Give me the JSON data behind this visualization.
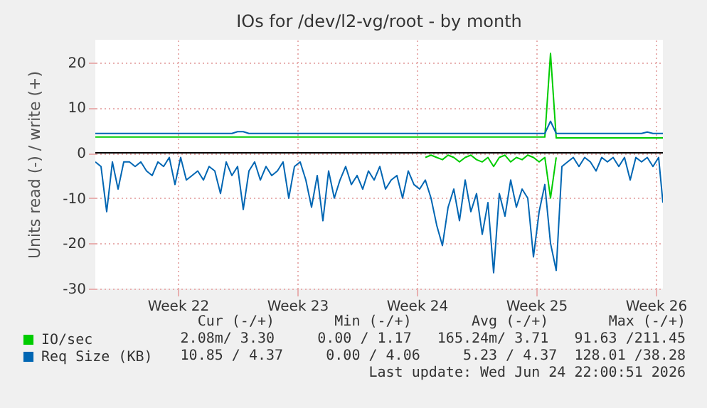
{
  "chart_data": {
    "type": "line",
    "title": "IOs for /dev/l2-vg/root - by month",
    "ylabel": "Units read (-) / write (+)",
    "x": [
      "2026-05-22T16:00",
      "2026-05-23T00:00",
      "2026-05-23T08:00",
      "2026-05-23T16:00",
      "2026-05-24T00:00",
      "2026-05-24T08:00",
      "2026-05-24T16:00",
      "2026-05-25T00:00",
      "2026-05-25T08:00",
      "2026-05-25T16:00",
      "2026-05-26T00:00",
      "2026-05-26T08:00",
      "2026-05-26T16:00",
      "2026-05-27T00:00",
      "2026-05-27T08:00",
      "2026-05-27T16:00",
      "2026-05-28T00:00",
      "2026-05-28T08:00",
      "2026-05-28T16:00",
      "2026-05-29T00:00",
      "2026-05-29T08:00",
      "2026-05-29T16:00",
      "2026-05-30T00:00",
      "2026-05-30T08:00",
      "2026-05-30T16:00",
      "2026-05-31T00:00",
      "2026-05-31T08:00",
      "2026-05-31T16:00",
      "2026-06-01T00:00",
      "2026-06-01T08:00",
      "2026-06-01T16:00",
      "2026-06-02T00:00",
      "2026-06-02T08:00",
      "2026-06-02T16:00",
      "2026-06-03T00:00",
      "2026-06-03T08:00",
      "2026-06-03T16:00",
      "2026-06-04T00:00",
      "2026-06-04T08:00",
      "2026-06-04T16:00",
      "2026-06-05T00:00",
      "2026-06-05T08:00",
      "2026-06-05T16:00",
      "2026-06-06T00:00",
      "2026-06-06T08:00",
      "2026-06-06T16:00",
      "2026-06-07T00:00",
      "2026-06-07T08:00",
      "2026-06-07T16:00",
      "2026-06-08T00:00",
      "2026-06-08T08:00",
      "2026-06-08T16:00",
      "2026-06-09T00:00",
      "2026-06-09T08:00",
      "2026-06-09T16:00",
      "2026-06-10T00:00",
      "2026-06-10T08:00",
      "2026-06-10T16:00",
      "2026-06-11T00:00",
      "2026-06-11T08:00",
      "2026-06-11T16:00",
      "2026-06-12T00:00",
      "2026-06-12T08:00",
      "2026-06-12T16:00",
      "2026-06-13T00:00",
      "2026-06-13T08:00",
      "2026-06-13T16:00",
      "2026-06-14T00:00",
      "2026-06-14T08:00",
      "2026-06-14T16:00",
      "2026-06-15T00:00",
      "2026-06-15T08:00",
      "2026-06-15T16:00",
      "2026-06-16T00:00",
      "2026-06-16T08:00",
      "2026-06-16T16:00",
      "2026-06-17T00:00",
      "2026-06-17T08:00",
      "2026-06-17T16:00",
      "2026-06-18T00:00",
      "2026-06-18T08:00",
      "2026-06-18T16:00",
      "2026-06-19T00:00",
      "2026-06-19T08:00",
      "2026-06-19T16:00",
      "2026-06-20T00:00",
      "2026-06-20T08:00",
      "2026-06-20T16:00",
      "2026-06-21T00:00",
      "2026-06-21T08:00",
      "2026-06-21T16:00",
      "2026-06-22T00:00",
      "2026-06-22T08:00",
      "2026-06-22T16:00",
      "2026-06-23T00:00",
      "2026-06-23T08:00",
      "2026-06-23T16:00",
      "2026-06-24T00:00",
      "2026-06-24T08:00",
      "2026-06-24T16:00",
      "2026-06-24T22:00"
    ],
    "xlim": [
      "2026-05-22T16:00",
      "2026-06-24T22:00"
    ],
    "xticks": [
      {
        "value": "2026-05-27T12:00",
        "label": "Week 22"
      },
      {
        "value": "2026-06-03T12:00",
        "label": "Week 23"
      },
      {
        "value": "2026-06-10T12:00",
        "label": "Week 24"
      },
      {
        "value": "2026-06-17T12:00",
        "label": "Week 25"
      },
      {
        "value": "2026-06-24T12:00",
        "label": "Week 26"
      }
    ],
    "ylim": [
      -30,
      25
    ],
    "yticks": [
      -30,
      -20,
      -10,
      0,
      10,
      20
    ],
    "grid": true,
    "legend": "bottom",
    "ref_lines": [
      {
        "axis": "y",
        "value": 0,
        "color": "#000000"
      }
    ],
    "series": [
      {
        "name": "IO/sec",
        "color": "#00cc00",
        "values": [
          3.5,
          3.5,
          3.5,
          3.5,
          3.5,
          3.5,
          3.5,
          3.5,
          3.5,
          3.5,
          3.5,
          3.5,
          3.5,
          3.5,
          3.5,
          3.5,
          3.5,
          3.5,
          3.5,
          3.5,
          3.5,
          3.5,
          3.5,
          3.5,
          3.5,
          3.5,
          3.5,
          3.5,
          3.5,
          3.5,
          3.5,
          3.5,
          3.5,
          3.5,
          3.5,
          3.5,
          3.5,
          3.5,
          3.5,
          3.5,
          3.5,
          3.5,
          3.5,
          3.5,
          3.5,
          3.5,
          3.5,
          3.5,
          3.5,
          3.5,
          3.5,
          3.5,
          3.5,
          3.5,
          3.5,
          3.5,
          3.5,
          3.5,
          3.5,
          3.5,
          3.5,
          3.5,
          3.5,
          3.5,
          3.5,
          3.5,
          3.5,
          3.5,
          3.5,
          3.5,
          3.5,
          3.5,
          3.5,
          3.5,
          3.5,
          3.5,
          3.5,
          3.5,
          3.5,
          3.5,
          22,
          3.3,
          3.3,
          3.3,
          3.3,
          3.3,
          3.3,
          3.3,
          3.3,
          3.3,
          3.3,
          3.3,
          3.3,
          3.3,
          3.3,
          3.3,
          3.3,
          3.3,
          3.3,
          3.3,
          3.3
        ]
      },
      {
        "color": "#00cc00",
        "values": [
          null,
          null,
          null,
          null,
          null,
          null,
          null,
          null,
          null,
          null,
          null,
          null,
          null,
          null,
          null,
          null,
          null,
          null,
          null,
          null,
          null,
          null,
          null,
          null,
          null,
          null,
          null,
          null,
          null,
          null,
          null,
          null,
          null,
          null,
          null,
          null,
          null,
          null,
          null,
          null,
          null,
          null,
          null,
          null,
          null,
          null,
          null,
          null,
          null,
          null,
          null,
          null,
          null,
          null,
          null,
          null,
          null,
          null,
          -1,
          -0.5,
          -1,
          -1.5,
          -0.5,
          -1,
          -2,
          -1,
          -0.5,
          -1.5,
          -2,
          -1,
          -3,
          -1,
          -0.5,
          -2,
          -1,
          -1.5,
          -0.5,
          -1,
          -2,
          -1,
          -10,
          -1,
          null,
          null,
          null,
          null,
          null,
          null,
          null,
          null,
          null,
          null,
          null,
          null,
          null,
          null,
          null,
          null,
          null,
          null,
          null
        ]
      },
      {
        "name": "Req Size (KB)",
        "color": "#0066b3",
        "values": [
          4.3,
          4.3,
          4.3,
          4.3,
          4.3,
          4.3,
          4.3,
          4.3,
          4.3,
          4.3,
          4.3,
          4.3,
          4.3,
          4.3,
          4.3,
          4.3,
          4.3,
          4.3,
          4.3,
          4.3,
          4.3,
          4.3,
          4.3,
          4.3,
          4.3,
          4.7,
          4.7,
          4.3,
          4.3,
          4.3,
          4.3,
          4.3,
          4.3,
          4.3,
          4.3,
          4.3,
          4.3,
          4.3,
          4.3,
          4.3,
          4.3,
          4.3,
          4.3,
          4.3,
          4.3,
          4.3,
          4.3,
          4.3,
          4.3,
          4.3,
          4.3,
          4.3,
          4.3,
          4.3,
          4.3,
          4.3,
          4.3,
          4.3,
          4.3,
          4.3,
          4.3,
          4.3,
          4.3,
          4.3,
          4.3,
          4.3,
          4.3,
          4.3,
          4.3,
          4.3,
          4.3,
          4.3,
          4.3,
          4.3,
          4.3,
          4.3,
          4.3,
          4.3,
          4.3,
          4.3,
          7,
          4.3,
          4.3,
          4.3,
          4.3,
          4.3,
          4.3,
          4.3,
          4.3,
          4.3,
          4.3,
          4.3,
          4.3,
          4.3,
          4.3,
          4.3,
          4.3,
          4.6,
          4.3,
          4.3,
          4.3
        ]
      },
      {
        "color": "#0066b3",
        "values": [
          -2,
          -3,
          -13,
          -2,
          -8,
          -2,
          -2,
          -3,
          -2,
          -4,
          -5,
          -2,
          -3,
          -1,
          -7,
          -1,
          -6,
          -5,
          -4,
          -6,
          -3,
          -4,
          -9,
          -2,
          -5,
          -3,
          -12.5,
          -4,
          -2,
          -6,
          -3,
          -5,
          -4,
          -2,
          -10,
          -3,
          -2,
          -6,
          -12,
          -5,
          -15,
          -4,
          -10,
          -6,
          -3,
          -7,
          -5,
          -8,
          -4,
          -6,
          -3,
          -8,
          -6,
          -5,
          -10,
          -4,
          -7,
          -8,
          -6,
          -10,
          -16,
          -20.5,
          -12,
          -8,
          -15,
          -6,
          -13,
          -9,
          -18,
          -11,
          -26.5,
          -9,
          -14,
          -6,
          -12,
          -8,
          -10,
          -23,
          -13,
          -7,
          -20,
          -26,
          -3,
          -2,
          -1,
          -3,
          -1,
          -2,
          -4,
          -1,
          -2,
          -1,
          -3,
          -1,
          -6,
          -1,
          -2,
          -1,
          -3,
          -1,
          -11
        ]
      }
    ],
    "annotations": [
      "Cur (-/+)       Min (-/+)       Avg (-/+)       Max (-/+)",
      "2.08m/ 3.30     0.00 / 1.17   165.24m/ 3.71   91.63 /211.45",
      "10.85 / 4.37     0.00 / 4.06     5.23 / 4.37  128.01 /38.28",
      "Last update: Wed Jun 24 22:00:51 2026"
    ]
  }
}
